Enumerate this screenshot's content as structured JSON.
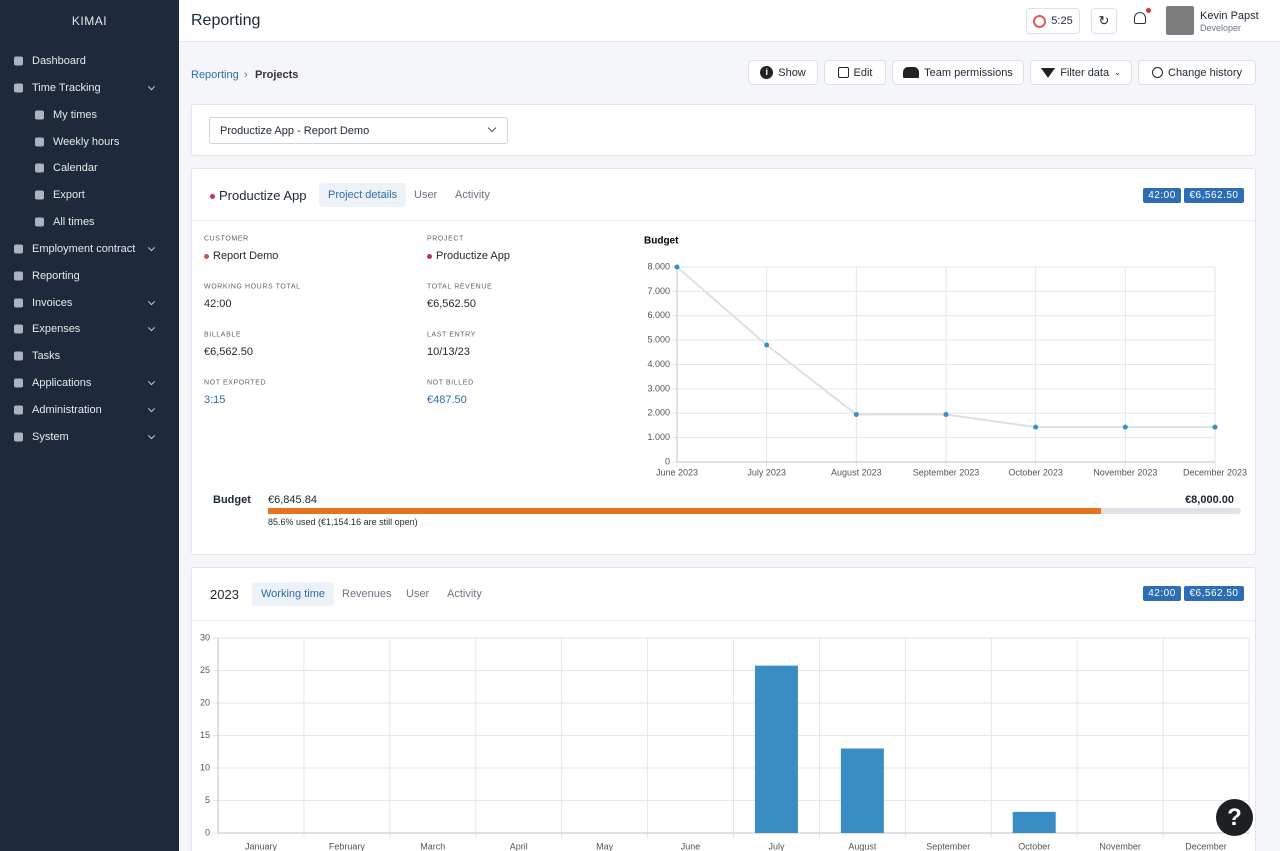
{
  "sidebar": {
    "brand": "KIMAI",
    "menu": [
      "Dashboard",
      "Time Tracking",
      "My times",
      "Weekly hours",
      "Calendar",
      "Export",
      "All times",
      "Employment contract",
      "Reporting",
      "Invoices",
      "Expenses",
      "Tasks",
      "Applications",
      "Administration",
      "System"
    ]
  },
  "header": {
    "title": "Reporting",
    "timer": "5:25",
    "user_name": "Kevin Papst",
    "user_role": "Developer"
  },
  "breadcrumb": [
    "Reporting",
    "Projects"
  ],
  "toolbar": [
    "Show",
    "Edit",
    "Team permissions",
    "Filter data",
    "Change history"
  ],
  "project_select": "Productize App - Report Demo",
  "project_card": {
    "name": "Productize App",
    "tabs": [
      "Project details",
      "User",
      "Activity"
    ],
    "badges": [
      "42:00",
      "€6,562.50"
    ],
    "fields": [
      {
        "label": "CUSTOMER",
        "value": "Report Demo"
      },
      {
        "label": "PROJECT",
        "value": "Productize App"
      },
      {
        "label": "WORKING HOURS TOTAL",
        "value": "42:00"
      },
      {
        "label": "TOTAL REVENUE",
        "value": "€6,562.50"
      },
      {
        "label": "BILLABLE",
        "value": "€6,562.50"
      },
      {
        "label": "LAST ENTRY",
        "value": "10/13/23"
      },
      {
        "label": "NOT EXPORTED",
        "value": "3:15"
      },
      {
        "label": "NOT BILLED",
        "value": "€487.50"
      }
    ],
    "budget": {
      "label": "Budget",
      "used": "€6,845.84",
      "total": "€8,000.00",
      "percent": 85.6,
      "note": "85.6% used (€1,154.16 are still open)"
    }
  },
  "year_card": {
    "year": "2023",
    "tabs": [
      "Working time",
      "Revenues",
      "User",
      "Activity"
    ],
    "badges": [
      "42:00",
      "€6,562.50"
    ]
  },
  "help": "?",
  "chart_data": [
    {
      "type": "line",
      "title": "Budget",
      "categories": [
        "June 2023",
        "July 2023",
        "August 2023",
        "September 2023",
        "October 2023",
        "November 2023",
        "December 2023"
      ],
      "values": [
        8000,
        4800,
        1950,
        1950,
        1430,
        1430,
        1430
      ],
      "color": "#dcdfe3",
      "marker_color": "#3a8fc4",
      "ylim": [
        0,
        8000
      ],
      "yticks": [
        0,
        {
          "value": 1000,
          "label": "1.000"
        },
        {
          "value": 2000,
          "label": "2.000"
        },
        {
          "value": 3000,
          "label": "3.000"
        },
        {
          "value": 4000,
          "label": "4.000"
        },
        {
          "value": 5000,
          "label": "5.000"
        },
        {
          "value": 6000,
          "label": "6.000"
        },
        {
          "value": 7000,
          "label": "7.000"
        },
        {
          "value": 8000,
          "label": "8.000"
        }
      ],
      "grid": true
    },
    {
      "type": "bar",
      "categories": [
        "January",
        "February",
        "March",
        "April",
        "May",
        "June",
        "July",
        "August",
        "September",
        "October",
        "November",
        "December"
      ],
      "values": [
        0,
        0,
        0,
        0,
        0,
        0,
        25.75,
        13,
        0,
        3.25,
        0,
        0
      ],
      "color": "#3a8dc4",
      "ylim": [
        0,
        30
      ],
      "yticks": [
        0,
        5,
        10,
        15,
        20,
        25,
        30
      ],
      "grid": true
    }
  ]
}
